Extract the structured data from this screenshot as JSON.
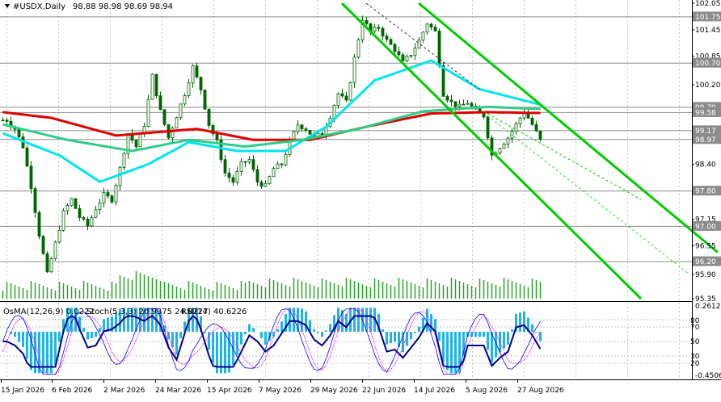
{
  "header": {
    "symbol_label": "#USDX,Daily",
    "ohlc": "98.88 98.98 98.69 98.94"
  },
  "indicator_header": {
    "osma": "OsMA(12,26,9) 0.0222",
    "stoch": "Stoch(5,3,3) 20.9375 24.8227",
    "rsi": "RSI(14) 40.6226"
  },
  "colors": {
    "background": "#ffffff",
    "grid": "#c8c8c8",
    "candle": "#006400",
    "ma_red": "#e00000",
    "ma_cyan": "#00e5ee",
    "ma_green": "#2ecc8a",
    "channel": "#00cc00",
    "volume": "#2ca02c",
    "osma": "#1fb4e6",
    "rsi": "#00008b",
    "stoch_main": "#0000ff",
    "stoch_signal": "#ff00ff"
  },
  "chart_data": {
    "type": "candlestick",
    "title": "#USDX,Daily",
    "ylim": [
      95.35,
      102.05
    ],
    "price_ticks": [
      "102.05",
      "101.75",
      "101.45",
      "100.85",
      "100.70",
      "100.20",
      "99.70",
      "99.58",
      "99.17",
      "98.97",
      "98.40",
      "97.80",
      "97.15",
      "97.00",
      "96.55",
      "96.20",
      "95.90",
      "95.35"
    ],
    "highlighted_levels": [
      {
        "value": 101.75,
        "label": "101.75"
      },
      {
        "value": 100.7,
        "label": "100.70"
      },
      {
        "value": 99.7,
        "label": "99.70"
      },
      {
        "value": 99.58,
        "label": "99.58"
      },
      {
        "value": 99.17,
        "label": "99.17"
      },
      {
        "value": 98.97,
        "label": "98.97"
      },
      {
        "value": 97.8,
        "label": "97.80"
      },
      {
        "value": 97.0,
        "label": "97.00"
      },
      {
        "value": 96.2,
        "label": "96.20"
      }
    ],
    "x_labels": [
      "15 Jan 2026",
      "6 Feb 2026",
      "2 Mar 2026",
      "24 Mar 2026",
      "15 Apr 2026",
      "7 May 2026",
      "29 May 2026",
      "22 Jun 2026",
      "14 Jul 2026",
      "5 Aug 2026",
      "27 Aug 2026"
    ],
    "close_path": [
      [
        1,
        99.4
      ],
      [
        3,
        99.2
      ],
      [
        5,
        98.8
      ],
      [
        7,
        97.9
      ],
      [
        9,
        96.8
      ],
      [
        11,
        95.9
      ],
      [
        13,
        96.6
      ],
      [
        15,
        97.3
      ],
      [
        17,
        97.6
      ],
      [
        19,
        97.2
      ],
      [
        21,
        97.0
      ],
      [
        23,
        97.4
      ],
      [
        25,
        97.7
      ],
      [
        27,
        97.6
      ],
      [
        29,
        98.3
      ],
      [
        31,
        99.1
      ],
      [
        33,
        98.8
      ],
      [
        35,
        99.3
      ],
      [
        37,
        100.4
      ],
      [
        39,
        99.6
      ],
      [
        41,
        99.0
      ],
      [
        43,
        99.5
      ],
      [
        45,
        100.0
      ],
      [
        47,
        100.6
      ],
      [
        49,
        100.1
      ],
      [
        51,
        99.3
      ],
      [
        53,
        98.9
      ],
      [
        55,
        98.2
      ],
      [
        57,
        98.0
      ],
      [
        59,
        98.4
      ],
      [
        61,
        98.5
      ],
      [
        63,
        98.0
      ],
      [
        65,
        97.9
      ],
      [
        67,
        98.3
      ],
      [
        69,
        98.4
      ],
      [
        71,
        98.9
      ],
      [
        73,
        99.3
      ],
      [
        75,
        99.2
      ],
      [
        77,
        99.0
      ],
      [
        79,
        99.1
      ],
      [
        81,
        99.5
      ],
      [
        83,
        100.0
      ],
      [
        85,
        99.8
      ],
      [
        87,
        100.8
      ],
      [
        89,
        101.7
      ],
      [
        91,
        101.4
      ],
      [
        93,
        101.5
      ],
      [
        95,
        101.2
      ],
      [
        97,
        101.0
      ],
      [
        99,
        100.7
      ],
      [
        101,
        100.9
      ],
      [
        103,
        101.2
      ],
      [
        105,
        101.6
      ],
      [
        107,
        101.4
      ],
      [
        109,
        100.0
      ],
      [
        111,
        99.8
      ],
      [
        113,
        99.7
      ],
      [
        115,
        99.8
      ],
      [
        117,
        99.6
      ],
      [
        119,
        99.5
      ],
      [
        121,
        98.6
      ],
      [
        123,
        98.8
      ],
      [
        125,
        99.0
      ],
      [
        127,
        99.3
      ],
      [
        129,
        99.6
      ],
      [
        131,
        99.3
      ],
      [
        133,
        98.94
      ]
    ],
    "series": [
      {
        "values": [
          [
            0,
            99.58
          ],
          [
            12,
            99.45
          ],
          [
            28,
            99.05
          ],
          [
            48,
            99.2
          ],
          [
            62,
            98.95
          ],
          [
            76,
            98.95
          ],
          [
            90,
            99.25
          ],
          [
            106,
            99.55
          ],
          [
            120,
            99.58
          ],
          [
            133,
            99.56
          ]
        ]
      },
      {
        "values": [
          [
            0,
            99.1
          ],
          [
            14,
            98.6
          ],
          [
            24,
            98.0
          ],
          [
            36,
            98.4
          ],
          [
            46,
            98.9
          ],
          [
            58,
            98.7
          ],
          [
            70,
            98.7
          ],
          [
            80,
            99.25
          ],
          [
            92,
            100.3
          ],
          [
            106,
            100.75
          ],
          [
            118,
            100.1
          ],
          [
            133,
            99.75
          ]
        ]
      },
      {
        "values": [
          [
            0,
            99.3
          ],
          [
            16,
            98.95
          ],
          [
            32,
            98.7
          ],
          [
            46,
            98.95
          ],
          [
            60,
            98.8
          ],
          [
            74,
            98.95
          ],
          [
            88,
            99.2
          ],
          [
            104,
            99.6
          ],
          [
            120,
            99.7
          ],
          [
            133,
            99.65
          ]
        ]
      }
    ],
    "channel_lines": [
      {
        "points": [
          [
            84,
            102.05
          ],
          [
            158,
            95.35
          ]
        ]
      },
      {
        "points": [
          [
            103,
            102.05
          ],
          [
            177,
            96.4
          ]
        ]
      },
      {
        "points": [
          [
            119,
            99.6
          ],
          [
            158,
            97.6
          ]
        ]
      }
    ],
    "indicators": {
      "osma_value": 0.0222,
      "osma_range": [
        -0.4506,
        0.2612
      ],
      "stoch_main": 20.9375,
      "stoch_signal": 24.8227,
      "rsi": 40.6226,
      "indicator_ticks": [
        "0.2612",
        "80",
        "70",
        "50",
        "30",
        "20",
        "-0.4506"
      ]
    }
  }
}
